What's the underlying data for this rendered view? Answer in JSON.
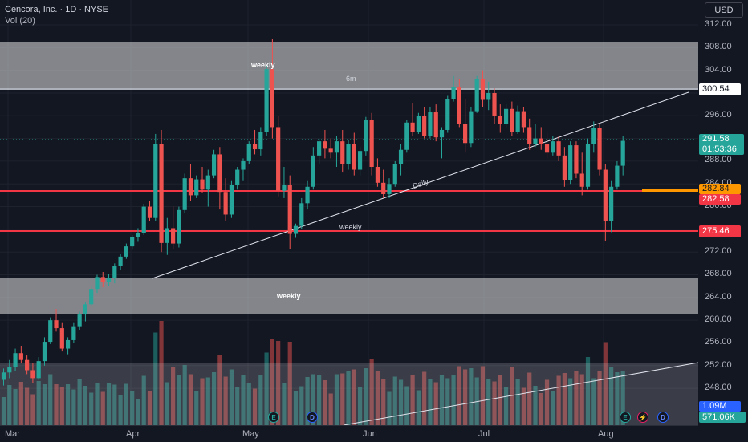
{
  "header": {
    "symbol_title": "Cencora, Inc. · 1D · NYSE",
    "volume_label": "Vol (20)",
    "currency_button": "USD"
  },
  "price_axis": {
    "ticks": [
      "312.00",
      "308.00",
      "304.00",
      "300.54",
      "296.00",
      "291.58",
      "288.00",
      "284.00",
      "282.84",
      "282.58",
      "280.00",
      "275.46",
      "272.00",
      "268.00",
      "264.00",
      "260.00",
      "256.00",
      "252.00",
      "248.00"
    ]
  },
  "price_tags": {
    "resistance_line": "300.54",
    "last_price": "291.58",
    "countdown": "01:53:36",
    "orange_level": "282.84",
    "red_level_upper": "282.58",
    "red_level_lower": "275.46",
    "volume_value": "1.09M",
    "volume_ma_value": "571.06K"
  },
  "time_axis": {
    "months": [
      "Mar",
      "Apr",
      "May",
      "Jun",
      "Jul",
      "Aug"
    ]
  },
  "annotations": {
    "weekly_top": "weekly",
    "six_month": "6m",
    "daily_trendline": "Daily",
    "weekly_line": "weekly",
    "weekly_bottom": "weekly"
  },
  "events": {
    "earnings_1": "E",
    "dividend_1": "D",
    "earnings_2": "E",
    "split": "⚡",
    "dividend_2": "D"
  },
  "colors": {
    "background": "#131722",
    "bull": "#26a69a",
    "bear": "#ef5350",
    "zone": "#c8c9cc",
    "red_line": "#f23645",
    "orange_line": "#ff9800"
  },
  "chart_data": {
    "type": "candlestick",
    "symbol": "Cencora, Inc.",
    "interval": "1D",
    "exchange": "NYSE",
    "ylim": [
      244,
      314
    ],
    "last_close": 291.58,
    "horizontal_levels": [
      300.54,
      282.84,
      282.58,
      275.46
    ],
    "zones": [
      {
        "label": "weekly",
        "from": 300.54,
        "to": 308.8
      },
      {
        "label": "weekly",
        "from": 261.3,
        "to": 267.5
      }
    ],
    "candles": [
      [
        249.5,
        251.5,
        248.5,
        250.8
      ],
      [
        250.8,
        253.0,
        249.8,
        251.8
      ],
      [
        251.8,
        255.0,
        251.0,
        254.2
      ],
      [
        254.2,
        255.5,
        252.5,
        253.0
      ],
      [
        253.0,
        253.8,
        250.5,
        251.2
      ],
      [
        251.2,
        252.5,
        249.0,
        249.8
      ],
      [
        249.8,
        253.5,
        249.5,
        252.8
      ],
      [
        252.8,
        257.0,
        252.0,
        256.2
      ],
      [
        256.2,
        260.5,
        255.8,
        260.0
      ],
      [
        260.0,
        262.0,
        258.0,
        258.6
      ],
      [
        258.6,
        259.5,
        254.5,
        255.0
      ],
      [
        255.0,
        257.0,
        254.0,
        256.5
      ],
      [
        256.5,
        259.5,
        256.0,
        258.8
      ],
      [
        258.8,
        261.5,
        258.2,
        261.0
      ],
      [
        261.0,
        263.2,
        259.8,
        262.8
      ],
      [
        262.8,
        266.0,
        262.5,
        265.5
      ],
      [
        265.5,
        268.0,
        264.8,
        267.6
      ],
      [
        267.6,
        268.5,
        265.8,
        266.8
      ],
      [
        266.8,
        268.2,
        266.0,
        267.4
      ],
      [
        267.4,
        270.0,
        266.5,
        269.5
      ],
      [
        269.5,
        271.6,
        268.8,
        271.2
      ],
      [
        271.2,
        273.5,
        270.8,
        273.0
      ],
      [
        273.0,
        275.0,
        272.4,
        274.6
      ],
      [
        274.6,
        276.2,
        273.8,
        275.4
      ],
      [
        275.4,
        280.5,
        275.0,
        280.0
      ],
      [
        280.0,
        281.0,
        277.5,
        278.0
      ],
      [
        278.0,
        292.8,
        277.5,
        291.0
      ],
      [
        291.0,
        293.5,
        272.0,
        273.6
      ],
      [
        273.6,
        278.0,
        271.5,
        276.2
      ],
      [
        276.2,
        280.0,
        272.5,
        273.5
      ],
      [
        273.5,
        280.0,
        272.8,
        279.4
      ],
      [
        279.4,
        285.8,
        278.8,
        285.0
      ],
      [
        285.0,
        287.5,
        281.0,
        282.0
      ],
      [
        282.0,
        285.5,
        281.5,
        284.8
      ],
      [
        284.8,
        287.0,
        282.5,
        283.0
      ],
      [
        283.0,
        286.5,
        280.0,
        285.5
      ],
      [
        285.5,
        290.0,
        285.0,
        289.2
      ],
      [
        289.2,
        290.5,
        279.5,
        282.6
      ],
      [
        282.6,
        285.0,
        277.5,
        278.6
      ],
      [
        278.6,
        284.5,
        278.0,
        283.8
      ],
      [
        283.8,
        287.0,
        283.0,
        286.5
      ],
      [
        286.5,
        288.5,
        284.5,
        288.0
      ],
      [
        288.0,
        291.5,
        287.5,
        291.0
      ],
      [
        291.0,
        293.5,
        289.2,
        290.1
      ],
      [
        290.1,
        294.0,
        289.0,
        293.2
      ],
      [
        293.2,
        304.8,
        292.5,
        304.2
      ],
      [
        304.2,
        309.5,
        292.0,
        294.0
      ],
      [
        294.0,
        296.0,
        281.8,
        282.8
      ],
      [
        282.8,
        287.0,
        281.5,
        283.8
      ],
      [
        283.8,
        285.5,
        272.5,
        275.2
      ],
      [
        275.2,
        277.0,
        274.5,
        276.6
      ],
      [
        276.6,
        281.5,
        276.0,
        280.6
      ],
      [
        280.6,
        284.5,
        279.5,
        283.5
      ],
      [
        283.5,
        290.5,
        283.0,
        289.0
      ],
      [
        289.0,
        292.0,
        287.5,
        291.5
      ],
      [
        291.5,
        293.5,
        288.5,
        290.2
      ],
      [
        290.2,
        292.0,
        288.5,
        289.5
      ],
      [
        289.5,
        292.5,
        287.0,
        291.5
      ],
      [
        291.5,
        293.5,
        286.0,
        287.5
      ],
      [
        287.5,
        291.8,
        286.5,
        291.0
      ],
      [
        291.0,
        293.0,
        285.5,
        286.5
      ],
      [
        286.5,
        290.5,
        285.5,
        289.8
      ],
      [
        289.8,
        295.8,
        289.0,
        295.2
      ],
      [
        295.2,
        296.5,
        285.5,
        287.0
      ],
      [
        287.0,
        288.5,
        283.5,
        284.2
      ],
      [
        284.2,
        286.5,
        281.5,
        282.2
      ],
      [
        282.2,
        285.0,
        281.5,
        284.0
      ],
      [
        284.0,
        288.0,
        283.5,
        287.5
      ],
      [
        287.5,
        291.0,
        285.5,
        290.0
      ],
      [
        290.0,
        295.2,
        289.5,
        294.8
      ],
      [
        294.8,
        298.2,
        292.5,
        293.2
      ],
      [
        293.2,
        296.5,
        292.8,
        296.0
      ],
      [
        296.0,
        297.5,
        292.0,
        292.5
      ],
      [
        292.5,
        297.6,
        292.0,
        296.6
      ],
      [
        296.6,
        298.0,
        291.5,
        292.2
      ],
      [
        292.2,
        294.0,
        288.5,
        293.5
      ],
      [
        293.5,
        299.5,
        293.0,
        299.0
      ],
      [
        299.0,
        303.0,
        298.5,
        301.0
      ],
      [
        301.0,
        302.5,
        294.0,
        294.6
      ],
      [
        294.6,
        299.0,
        289.5,
        291.2
      ],
      [
        291.2,
        297.5,
        290.5,
        296.8
      ],
      [
        296.8,
        303.0,
        296.5,
        302.5
      ],
      [
        302.5,
        304.0,
        297.5,
        298.8
      ],
      [
        298.8,
        302.0,
        297.0,
        300.0
      ],
      [
        300.0,
        300.8,
        294.5,
        296.0
      ],
      [
        296.0,
        298.0,
        293.0,
        294.5
      ],
      [
        294.5,
        298.0,
        294.0,
        297.2
      ],
      [
        297.2,
        298.5,
        292.5,
        293.2
      ],
      [
        293.2,
        297.8,
        292.8,
        296.8
      ],
      [
        296.8,
        297.5,
        293.0,
        294.0
      ],
      [
        294.0,
        295.5,
        290.0,
        291.0
      ],
      [
        291.0,
        294.5,
        290.5,
        292.0
      ],
      [
        292.0,
        294.0,
        290.0,
        291.0
      ],
      [
        291.0,
        293.0,
        288.5,
        289.5
      ],
      [
        289.5,
        292.5,
        289.0,
        291.5
      ],
      [
        291.5,
        292.5,
        288.0,
        289.0
      ],
      [
        289.0,
        290.5,
        283.5,
        284.6
      ],
      [
        284.6,
        291.5,
        284.0,
        290.8
      ],
      [
        290.8,
        291.5,
        285.0,
        285.8
      ],
      [
        285.8,
        289.5,
        282.0,
        283.5
      ],
      [
        283.5,
        292.0,
        283.0,
        291.0
      ],
      [
        291.0,
        295.0,
        289.5,
        293.8
      ],
      [
        293.8,
        294.5,
        285.5,
        286.5
      ],
      [
        286.5,
        287.5,
        274.0,
        277.5
      ],
      [
        277.5,
        284.5,
        275.5,
        283.5
      ],
      [
        283.5,
        288.0,
        283.0,
        287.2
      ],
      [
        287.2,
        292.5,
        285.5,
        291.58
      ]
    ]
  }
}
